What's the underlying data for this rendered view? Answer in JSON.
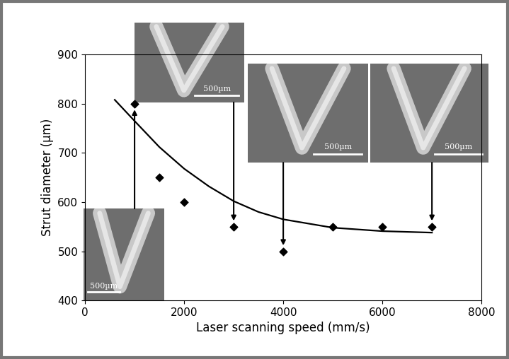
{
  "chart_data": {
    "type": "scatter",
    "x_label": "Laser scanning speed (mm/s)",
    "y_label": "Strut diameter (µm)",
    "x": [
      1000,
      1500,
      2000,
      3000,
      4000,
      5000,
      6000,
      7000
    ],
    "values": [
      800,
      650,
      600,
      550,
      500,
      550,
      550,
      550
    ],
    "color": "#000000",
    "marker": "diamond",
    "fit": {
      "x": [
        600,
        1000,
        1500,
        2000,
        2500,
        3000,
        3500,
        4000,
        5000,
        6000,
        7000
      ],
      "values": [
        808,
        765,
        712,
        668,
        632,
        602,
        580,
        565,
        548,
        541,
        538
      ],
      "color": "#000000",
      "line_style": "solid"
    },
    "images": [
      {
        "scan_speed": 1000,
        "scale_bar": "500µm"
      },
      {
        "scan_speed": 3000,
        "scale_bar": "500µm"
      },
      {
        "scan_speed": 4000,
        "scale_bar": "500µm"
      },
      {
        "scan_speed": 7000,
        "scale_bar": "500µm"
      }
    ],
    "xlim": [
      0,
      8000
    ],
    "xticks": [
      0,
      2000,
      4000,
      6000,
      8000
    ],
    "ylim": [
      400,
      900
    ],
    "yticks": [
      400,
      500,
      600,
      700,
      800,
      900
    ],
    "grid": false
  }
}
